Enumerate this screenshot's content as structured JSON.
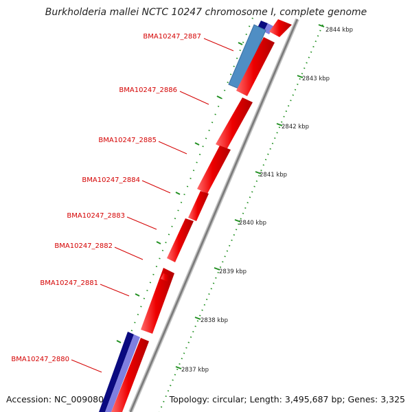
{
  "title": "Burkholderia mallei NCTC 10247 chromosome I, complete genome",
  "footer": {
    "accession": "Accession: NC_009080",
    "summary": "Topology: circular; Length: 3,495,687 bp; Genes: 3,325"
  },
  "colors": {
    "gene_forward": "#e80000",
    "gene_reverse_dark": "#0a0a80",
    "gene_reverse_light": "#7f7fe0",
    "gene_blue": "#4f8ec4",
    "backbone": "#8a8a8a",
    "tick": "#1f8f1f",
    "label": "#d40000"
  },
  "genes": [
    {
      "name": "BMA10247_2887"
    },
    {
      "name": "BMA10247_2886"
    },
    {
      "name": "BMA10247_2885"
    },
    {
      "name": "BMA10247_2884"
    },
    {
      "name": "BMA10247_2883"
    },
    {
      "name": "BMA10247_2882"
    },
    {
      "name": "BMA10247_2881"
    },
    {
      "name": "BMA10247_2880"
    }
  ],
  "kbp_ticks": [
    {
      "label": "2844 kbp"
    },
    {
      "label": "2843 kbp"
    },
    {
      "label": "2842 kbp"
    },
    {
      "label": "2841 kbp"
    },
    {
      "label": "2840 kbp"
    },
    {
      "label": "2839 kbp"
    },
    {
      "label": "2838 kbp"
    },
    {
      "label": "2837 kbp"
    }
  ]
}
